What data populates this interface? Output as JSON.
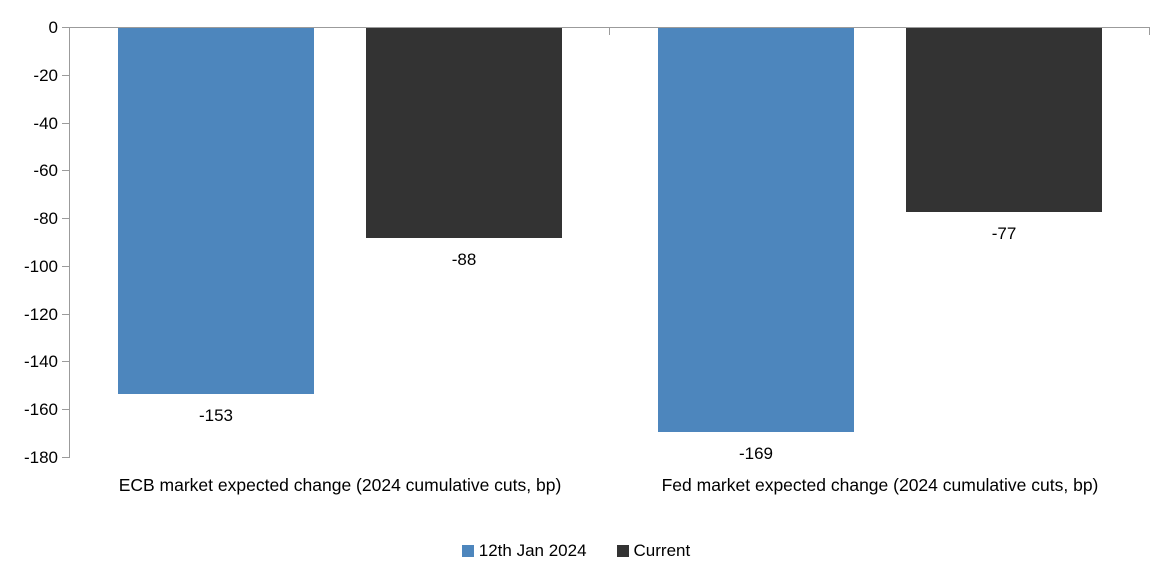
{
  "chart_data": {
    "type": "bar",
    "title": "",
    "xlabel": "",
    "ylabel": "",
    "categories": [
      "ECB market expected change (2024 cumulative cuts, bp)",
      "Fed market expected change (2024 cumulative cuts, bp)"
    ],
    "series": [
      {
        "name": "12th Jan 2024",
        "color": "#4D86BD",
        "values": [
          -153,
          -169
        ]
      },
      {
        "name": "Current",
        "color": "#333333",
        "values": [
          -88,
          -77
        ]
      }
    ],
    "data_labels": [
      [
        "-153",
        "-169"
      ],
      [
        "-88",
        "-77"
      ]
    ],
    "ylim": [
      -180,
      0
    ],
    "yticks": [
      0,
      -20,
      -40,
      -60,
      -80,
      -100,
      -120,
      -140,
      -160,
      -180
    ],
    "grid": false,
    "bar_orientation": "vertical",
    "data_label_position": "outside-end",
    "legend_position": "bottom",
    "axis_color": "#9B9B9B",
    "text_color": "#000000"
  }
}
